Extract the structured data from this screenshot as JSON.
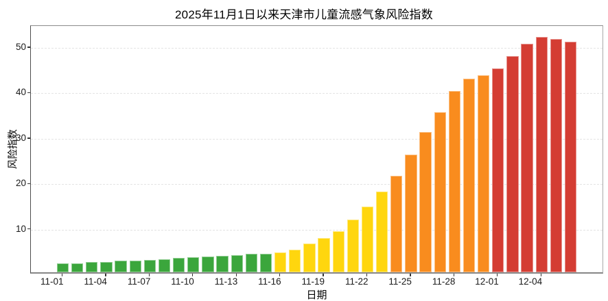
{
  "chart_title": "2025年11月1日以来天津市儿童流感气象风险指数",
  "chart_data": {
    "type": "bar",
    "title": "2025年11月1日以来天津市儿童流感气象风险指数",
    "xlabel": "日期",
    "ylabel": "风险指数",
    "ylim": [
      0.6,
      54.8
    ],
    "yticks": [
      10,
      20,
      30,
      40,
      50
    ],
    "grid": true,
    "legend_position": "none",
    "x_tick_every": 3,
    "x_tick_labels": [
      "11-01",
      "11-04",
      "11-07",
      "11-10",
      "11-13",
      "11-16",
      "11-19",
      "11-22",
      "11-25",
      "11-28",
      "12-01",
      "12-04"
    ],
    "categories": [
      "11-01",
      "11-02",
      "11-03",
      "11-04",
      "11-05",
      "11-06",
      "11-07",
      "11-08",
      "11-09",
      "11-10",
      "11-11",
      "11-12",
      "11-13",
      "11-14",
      "11-15",
      "11-16",
      "11-17",
      "11-18",
      "11-19",
      "11-20",
      "11-21",
      "11-22",
      "11-23",
      "11-24",
      "11-25",
      "11-26",
      "11-27",
      "11-28",
      "11-29",
      "11-30",
      "12-01",
      "12-02",
      "12-03",
      "12-04",
      "12-05",
      "12-06"
    ],
    "values": [
      2.5,
      2.6,
      2.8,
      2.9,
      3.1,
      3.2,
      3.3,
      3.5,
      3.7,
      3.9,
      4.0,
      4.2,
      4.4,
      4.6,
      4.7,
      4.9,
      5.5,
      6.9,
      8.2,
      9.7,
      12.2,
      15.0,
      18.3,
      21.9,
      26.5,
      31.5,
      35.8,
      40.5,
      43.2,
      43.9,
      45.5,
      48.2,
      50.9,
      52.4,
      51.9,
      51.3
    ],
    "bar_colors": [
      "green",
      "green",
      "green",
      "green",
      "green",
      "green",
      "green",
      "green",
      "green",
      "green",
      "green",
      "green",
      "green",
      "green",
      "green",
      "yellow",
      "yellow",
      "yellow",
      "yellow",
      "yellow",
      "yellow",
      "yellow",
      "yellow",
      "orange",
      "orange",
      "orange",
      "orange",
      "orange",
      "orange",
      "orange",
      "red",
      "red",
      "red",
      "red",
      "red",
      "red"
    ],
    "palette": {
      "green": "#3BA63C",
      "yellow": "#FFD60E",
      "orange": "#F98C1E",
      "red": "#D43D33"
    },
    "axis_color": "#858585",
    "grid_color": "#e3e3e3"
  }
}
